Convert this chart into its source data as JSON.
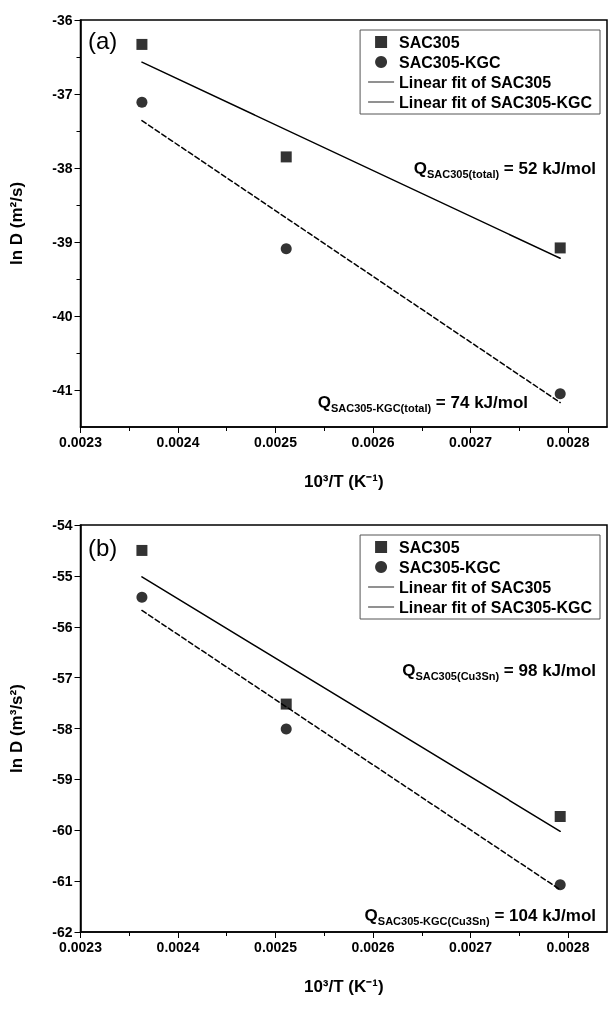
{
  "chart_data": [
    {
      "type": "scatter",
      "xlabel": "10³/T (K⁻¹)",
      "ylabel": "ln D (m²/s)",
      "xlim": [
        0.0023,
        0.00284
      ],
      "xticks": [
        0.0023,
        0.0024,
        0.0025,
        0.0026,
        0.0027,
        0.0028
      ],
      "ylim": [
        -41.5,
        -36
      ],
      "yticks": [
        -41,
        -40,
        -39,
        -38,
        -37,
        -36
      ],
      "grid": false,
      "legend": "top right",
      "annotations": [
        "(a)",
        "Q$_{SAC305(total)}$ = 52 kJ/mol",
        "Q$_{SAC305-KGC(total)}$ = 74 kJ/mol"
      ],
      "series": [
        {
          "name": "SAC305",
          "marker": "square",
          "color": "#000000",
          "x": [
            0.002363,
            0.002511,
            0.002792
          ],
          "values": [
            -36.33,
            -37.85,
            -39.08
          ]
        },
        {
          "name": "SAC305-KGC",
          "marker": "circle",
          "color": "#000000",
          "x": [
            0.002363,
            0.002511,
            0.002792
          ],
          "values": [
            -37.11,
            -39.09,
            -41.05
          ]
        },
        {
          "name": "Linear fit of SAC305",
          "type": "line",
          "marker": "none",
          "line_style": "solid",
          "color": "#000000",
          "x": [
            0.002363,
            0.002792
          ],
          "values": [
            -36.57,
            -39.22
          ]
        },
        {
          "name": "Linear fit of SAC305-KGC",
          "type": "line",
          "marker": "none",
          "line_style": "dashed",
          "color": "#000000",
          "x": [
            0.002363,
            0.002792
          ],
          "values": [
            -37.36,
            -41.17
          ]
        }
      ]
    },
    {
      "type": "scatter",
      "xlabel": "10³/T (K⁻¹)",
      "ylabel": "ln D (m³/s²)",
      "xlim": [
        0.0023,
        0.00284
      ],
      "xticks": [
        0.0023,
        0.0024,
        0.0025,
        0.0026,
        0.0027,
        0.0028
      ],
      "ylim": [
        -62,
        -54
      ],
      "yticks": [
        -62,
        -61,
        -60,
        -59,
        -58,
        -57,
        -56,
        -55,
        -54
      ],
      "grid": false,
      "legend": "top right",
      "annotations": [
        "(b)",
        "Q$_{SAC305(Cu3Sn)}$ = 98 kJ/mol",
        "Q$_{SAC305-KGC(Cu3Sn)}$ = 104 kJ/mol"
      ],
      "series": [
        {
          "name": "SAC305",
          "marker": "square",
          "color": "#000000",
          "x": [
            0.002363,
            0.002511,
            0.002792
          ],
          "values": [
            -54.5,
            -57.52,
            -59.73
          ]
        },
        {
          "name": "SAC305-KGC",
          "marker": "circle",
          "color": "#000000",
          "x": [
            0.002363,
            0.002511,
            0.002792
          ],
          "values": [
            -55.42,
            -58.01,
            -61.07
          ]
        },
        {
          "name": "Linear fit of SAC305",
          "type": "line",
          "marker": "none",
          "line_style": "solid",
          "color": "#000000",
          "x": [
            0.002363,
            0.002792
          ],
          "values": [
            -55.02,
            -60.02
          ]
        },
        {
          "name": "Linear fit of SAC305-KGC",
          "type": "line",
          "marker": "none",
          "line_style": "dashed",
          "color": "#000000",
          "x": [
            0.002363,
            0.002792
          ],
          "values": [
            -55.68,
            -61.17
          ]
        }
      ]
    }
  ]
}
